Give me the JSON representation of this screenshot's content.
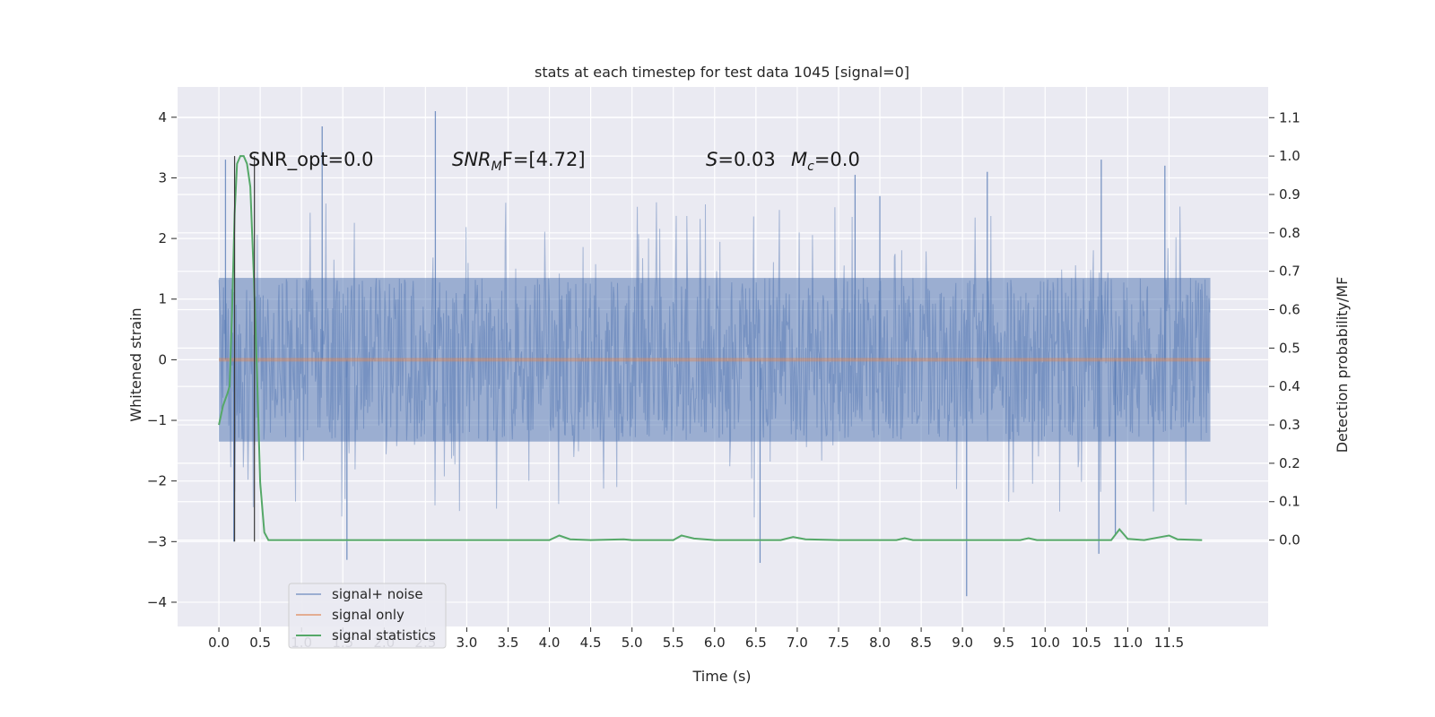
{
  "chart_data": {
    "type": "line",
    "title": "stats at each timestep for test data 1045 [signal=0]",
    "xlabel": "Time (s)",
    "ylabel": "Whitened strain",
    "y2label": "Detection probability/MF",
    "xlim": [
      -0.5,
      12.7
    ],
    "ylim": [
      -4.4,
      4.5
    ],
    "y2lim": [
      -0.225,
      1.18
    ],
    "x_ticks": [
      0.0,
      0.5,
      1.0,
      1.5,
      2.0,
      2.5,
      3.0,
      3.5,
      4.0,
      4.5,
      5.0,
      5.5,
      6.0,
      6.5,
      7.0,
      7.5,
      8.0,
      8.5,
      9.0,
      9.5,
      10.0,
      10.5,
      11.0,
      11.5
    ],
    "x_tick_labels": [
      "0.0",
      "0.5",
      "1.0",
      "1.5",
      "2.0",
      "2.5",
      "3.0",
      "3.5",
      "4.0",
      "4.5",
      "5.0",
      "5.5",
      "6.0",
      "6.5",
      "7.0",
      "7.5",
      "8.0",
      "8.5",
      "9.0",
      "9.5",
      "10.0",
      "10.5",
      "11.0",
      "11.5"
    ],
    "y_ticks": [
      -4,
      -3,
      -2,
      -1,
      0,
      1,
      2,
      3,
      4
    ],
    "y_tick_labels": [
      "−4",
      "−3",
      "−2",
      "−1",
      "0",
      "1",
      "2",
      "3",
      "4"
    ],
    "y2_ticks": [
      0.0,
      0.1,
      0.2,
      0.3,
      0.4,
      0.5,
      0.6,
      0.7,
      0.8,
      0.9,
      1.0,
      1.1
    ],
    "y2_tick_labels": [
      "0.0",
      "0.1",
      "0.2",
      "0.3",
      "0.4",
      "0.5",
      "0.6",
      "0.7",
      "0.8",
      "0.9",
      "1.0",
      "1.1"
    ],
    "grid": true,
    "legend_position": "bottom-left",
    "colors": {
      "noise": "#4c72b0",
      "signal": "#dd8452",
      "stats": "#55a868",
      "background": "#eaeaf2",
      "grid": "#ffffff",
      "vline": "#3a3a3a"
    },
    "annotations": {
      "snr_opt": "SNR_opt=0.0",
      "snr_mf_base": "SNR",
      "snr_mf_sub": "M",
      "snr_mf_rest": "F=[4.72]",
      "s_sym": "S",
      "s_val": "=0.03",
      "mc_sym": "M",
      "mc_sub": "c",
      "mc_val": "=0.0"
    },
    "series": [
      {
        "name": "signal+ noise",
        "axis": "left",
        "description_values": "dense whitened strain noise, 12 s sampled; envelope roughly ±1.35 with spikes",
        "spikes": [
          {
            "x": 0.08,
            "y": 3.3
          },
          {
            "x": 1.25,
            "y": 3.85
          },
          {
            "x": 2.62,
            "y": 4.1
          },
          {
            "x": 7.7,
            "y": 3.05
          },
          {
            "x": 8.0,
            "y": 2.7
          },
          {
            "x": 10.68,
            "y": 3.3
          },
          {
            "x": 11.45,
            "y": 3.2
          },
          {
            "x": 9.3,
            "y": 3.1
          },
          {
            "x": 1.55,
            "y": -3.3
          },
          {
            "x": 6.55,
            "y": -3.35
          },
          {
            "x": 9.05,
            "y": -3.9
          },
          {
            "x": 10.65,
            "y": -3.2
          },
          {
            "x": 10.85,
            "y": -2.9
          },
          {
            "x": 0.18,
            "y": -3.0
          }
        ]
      },
      {
        "name": "signal only",
        "axis": "left",
        "x": [
          0.0,
          12.0
        ],
        "y": [
          0.0,
          0.0
        ]
      },
      {
        "name": "signal statistics",
        "axis": "right",
        "x": [
          0.0,
          0.05,
          0.1,
          0.13,
          0.16,
          0.19,
          0.22,
          0.26,
          0.3,
          0.34,
          0.38,
          0.42,
          0.46,
          0.5,
          0.55,
          0.6,
          0.7,
          1.0,
          2.0,
          2.9,
          3.0,
          3.9,
          4.0,
          4.12,
          4.25,
          4.5,
          4.9,
          5.0,
          5.5,
          5.6,
          5.75,
          6.0,
          6.8,
          6.95,
          7.1,
          7.5,
          8.2,
          8.3,
          8.4,
          9.0,
          9.7,
          9.8,
          9.9,
          10.5,
          10.8,
          10.9,
          11.0,
          11.2,
          11.4,
          11.5,
          11.6,
          11.9
        ],
        "y": [
          0.3,
          0.35,
          0.38,
          0.4,
          0.6,
          0.85,
          0.98,
          1.0,
          1.0,
          0.98,
          0.92,
          0.7,
          0.45,
          0.15,
          0.02,
          0.0,
          0.0,
          0.0,
          0.0,
          0.0,
          0.0,
          0.0,
          0.0,
          0.012,
          0.002,
          0.0,
          0.002,
          0.0,
          0.0,
          0.012,
          0.004,
          0.0,
          0.0,
          0.008,
          0.002,
          0.0,
          0.0,
          0.005,
          0.0,
          0.0,
          0.0,
          0.005,
          0.0,
          0.0,
          0.0,
          0.028,
          0.003,
          0.0,
          0.008,
          0.012,
          0.002,
          0.0
        ]
      }
    ],
    "vertical_lines": [
      0.19,
      0.43
    ],
    "legend_entries": [
      "signal+ noise",
      "signal only",
      "signal statistics"
    ]
  }
}
